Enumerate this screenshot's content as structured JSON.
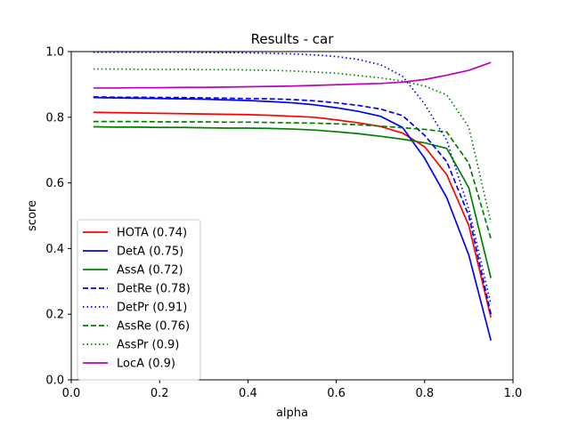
{
  "chart_data": {
    "type": "line",
    "title": "Results - car",
    "xlabel": "alpha",
    "ylabel": "score",
    "xlim": [
      0.0,
      1.0
    ],
    "ylim": [
      0.0,
      1.0
    ],
    "xticks": [
      "0.0",
      "0.2",
      "0.4",
      "0.6",
      "0.8",
      "1.0"
    ],
    "yticks": [
      "0.0",
      "0.2",
      "0.4",
      "0.6",
      "0.8",
      "1.0"
    ],
    "grid": false,
    "legend_position": "lower-left",
    "x": [
      0.05,
      0.1,
      0.15,
      0.2,
      0.25,
      0.3,
      0.35,
      0.4,
      0.45,
      0.5,
      0.55,
      0.6,
      0.65,
      0.7,
      0.75,
      0.8,
      0.85,
      0.9,
      0.95
    ],
    "series": [
      {
        "name": "HOTA (0.74)",
        "color": "#ff0000",
        "dash": "solid",
        "values": [
          0.815,
          0.814,
          0.813,
          0.812,
          0.811,
          0.81,
          0.809,
          0.808,
          0.806,
          0.803,
          0.8,
          0.792,
          0.783,
          0.772,
          0.752,
          0.71,
          0.625,
          0.47,
          0.19
        ]
      },
      {
        "name": "DetA (0.75)",
        "color": "#0000ff",
        "dash": "solid",
        "values": [
          0.86,
          0.859,
          0.858,
          0.857,
          0.856,
          0.855,
          0.853,
          0.851,
          0.848,
          0.844,
          0.838,
          0.829,
          0.818,
          0.803,
          0.769,
          0.675,
          0.555,
          0.38,
          0.12
        ]
      },
      {
        "name": "AssA (0.72)",
        "color": "#008000",
        "dash": "solid",
        "values": [
          0.771,
          0.77,
          0.77,
          0.769,
          0.769,
          0.768,
          0.767,
          0.767,
          0.766,
          0.764,
          0.761,
          0.756,
          0.75,
          0.742,
          0.733,
          0.722,
          0.705,
          0.585,
          0.31
        ]
      },
      {
        "name": "DetRe (0.78)",
        "color": "#0000ff",
        "dash": "dashed",
        "values": [
          0.862,
          0.861,
          0.861,
          0.86,
          0.86,
          0.859,
          0.858,
          0.857,
          0.856,
          0.854,
          0.85,
          0.844,
          0.836,
          0.825,
          0.805,
          0.745,
          0.665,
          0.5,
          0.2
        ]
      },
      {
        "name": "DetPr (0.91)",
        "color": "#0000ff",
        "dash": "dotted",
        "values": [
          0.998,
          0.998,
          0.998,
          0.998,
          0.998,
          0.997,
          0.997,
          0.996,
          0.995,
          0.993,
          0.99,
          0.985,
          0.976,
          0.96,
          0.925,
          0.84,
          0.73,
          0.52,
          0.23
        ]
      },
      {
        "name": "AssRe (0.76)",
        "color": "#008000",
        "dash": "dashed",
        "values": [
          0.787,
          0.787,
          0.787,
          0.786,
          0.786,
          0.786,
          0.785,
          0.785,
          0.784,
          0.783,
          0.782,
          0.78,
          0.777,
          0.773,
          0.768,
          0.763,
          0.755,
          0.66,
          0.43
        ]
      },
      {
        "name": "AssPr (0.9)",
        "color": "#008000",
        "dash": "dotted",
        "values": [
          0.947,
          0.947,
          0.946,
          0.946,
          0.946,
          0.945,
          0.945,
          0.944,
          0.943,
          0.941,
          0.938,
          0.934,
          0.927,
          0.92,
          0.91,
          0.895,
          0.868,
          0.77,
          0.48
        ]
      },
      {
        "name": "LocA (0.9)",
        "color": "#bf00bf",
        "dash": "solid",
        "values": [
          0.889,
          0.889,
          0.89,
          0.89,
          0.891,
          0.891,
          0.892,
          0.893,
          0.894,
          0.895,
          0.897,
          0.899,
          0.901,
          0.903,
          0.907,
          0.915,
          0.928,
          0.943,
          0.967
        ]
      }
    ]
  }
}
